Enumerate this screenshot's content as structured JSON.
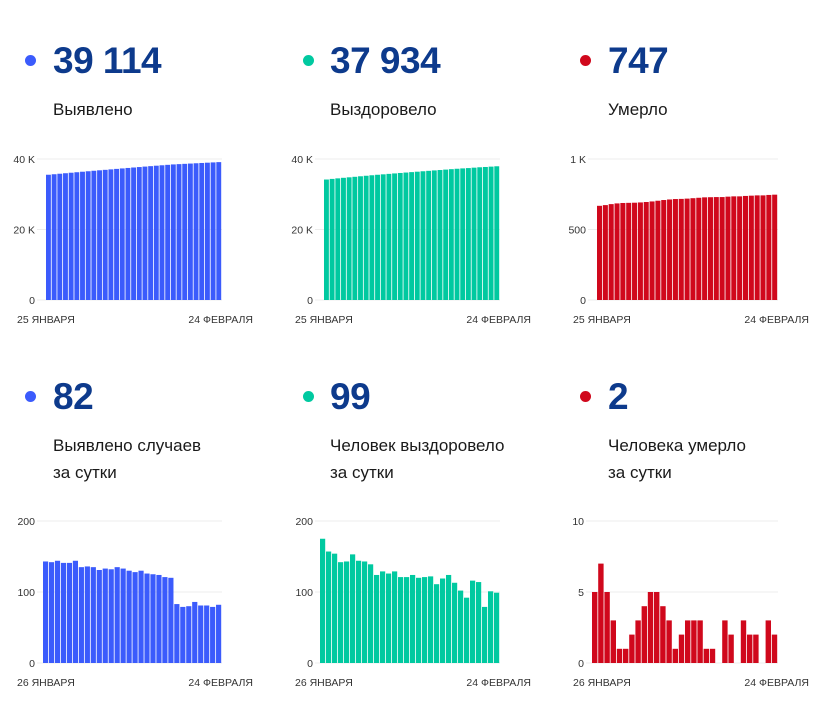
{
  "panels": [
    {
      "id": "detected-total",
      "value": "39 114",
      "label_lines": [
        "Выявлено"
      ],
      "color": "#3b5bfc",
      "chart_data": {
        "type": "bar",
        "title": "Выявлено",
        "x_start_label": "25 ЯНВАРЯ",
        "x_end_label": "24 ФЕВРАЛЯ",
        "x": [
          "25.01",
          "26.01",
          "27.01",
          "28.01",
          "29.01",
          "30.01",
          "31.01",
          "01.02",
          "02.02",
          "03.02",
          "04.02",
          "05.02",
          "06.02",
          "07.02",
          "08.02",
          "09.02",
          "10.02",
          "11.02",
          "12.02",
          "13.02",
          "14.02",
          "15.02",
          "16.02",
          "17.02",
          "18.02",
          "19.02",
          "20.02",
          "21.02",
          "22.02",
          "23.02",
          "24.02"
        ],
        "values": [
          35534,
          35677,
          35819,
          35963,
          36104,
          36245,
          36389,
          36524,
          36660,
          36795,
          36926,
          37059,
          37191,
          37326,
          37459,
          37589,
          37717,
          37847,
          37973,
          38098,
          38222,
          38343,
          38463,
          38546,
          38625,
          38705,
          38791,
          38872,
          38953,
          39032,
          39114
        ],
        "yticks": [
          "0",
          "20 K",
          "40 K"
        ],
        "ytick_values": [
          0,
          20000,
          40000
        ],
        "ylim": [
          0,
          40000
        ],
        "grid": true
      }
    },
    {
      "id": "recovered-total",
      "value": "37 934",
      "label_lines": [
        "Выздоровело"
      ],
      "color": "#00c9a0",
      "chart_data": {
        "type": "bar",
        "title": "Выздоровело",
        "x_start_label": "25 ЯНВАРЯ",
        "x_end_label": "24 ФЕВРАЛЯ",
        "x": [
          "25.01",
          "26.01",
          "27.01",
          "28.01",
          "29.01",
          "30.01",
          "31.01",
          "01.02",
          "02.02",
          "03.02",
          "04.02",
          "05.02",
          "06.02",
          "07.02",
          "08.02",
          "09.02",
          "10.02",
          "11.02",
          "12.02",
          "13.02",
          "14.02",
          "15.02",
          "16.02",
          "17.02",
          "18.02",
          "19.02",
          "20.02",
          "21.02",
          "22.02",
          "23.02",
          "24.02"
        ],
        "values": [
          34177,
          34352,
          34509,
          34663,
          34805,
          34948,
          35101,
          35245,
          35388,
          35527,
          35651,
          35780,
          35906,
          36035,
          36156,
          36277,
          36401,
          36521,
          36642,
          36764,
          36875,
          36994,
          37118,
          37231,
          37333,
          37425,
          37541,
          37655,
          37734,
          37835,
          37934
        ],
        "yticks": [
          "0",
          "20 K",
          "40 K"
        ],
        "ytick_values": [
          0,
          20000,
          40000
        ],
        "ylim": [
          0,
          40000
        ],
        "grid": true
      }
    },
    {
      "id": "deaths-total",
      "value": "747",
      "label_lines": [
        "Умерло"
      ],
      "color": "#d0081c",
      "chart_data": {
        "type": "bar",
        "title": "Умерло",
        "x_start_label": "25 ЯНВАРЯ",
        "x_end_label": "24 ФЕВРАЛЯ",
        "x": [
          "25.01",
          "26.01",
          "27.01",
          "28.01",
          "29.01",
          "30.01",
          "31.01",
          "01.02",
          "02.02",
          "03.02",
          "04.02",
          "05.02",
          "06.02",
          "07.02",
          "08.02",
          "09.02",
          "10.02",
          "11.02",
          "12.02",
          "13.02",
          "14.02",
          "15.02",
          "16.02",
          "17.02",
          "18.02",
          "19.02",
          "20.02",
          "21.02",
          "22.02",
          "23.02",
          "24.02"
        ],
        "values": [
          668,
          673,
          680,
          685,
          688,
          689,
          690,
          692,
          695,
          699,
          704,
          709,
          713,
          716,
          717,
          719,
          722,
          725,
          728,
          729,
          730,
          730,
          733,
          735,
          735,
          738,
          740,
          742,
          742,
          745,
          747
        ],
        "yticks": [
          "0",
          "500",
          "1 K"
        ],
        "ytick_values": [
          0,
          500,
          1000
        ],
        "ylim": [
          0,
          1000
        ],
        "grid": true
      }
    },
    {
      "id": "detected-daily",
      "value": "82",
      "label_lines": [
        "Выявлено случаев",
        "за сутки"
      ],
      "color": "#3b5bfc",
      "chart_data": {
        "type": "bar",
        "title": "Выявлено случаев за сутки",
        "x_start_label": "26 ЯНВАРЯ",
        "x_end_label": "24 ФЕВРАЛЯ",
        "x": [
          "26.01",
          "27.01",
          "28.01",
          "29.01",
          "30.01",
          "31.01",
          "01.02",
          "02.02",
          "03.02",
          "04.02",
          "05.02",
          "06.02",
          "07.02",
          "08.02",
          "09.02",
          "10.02",
          "11.02",
          "12.02",
          "13.02",
          "14.02",
          "15.02",
          "16.02",
          "17.02",
          "18.02",
          "19.02",
          "20.02",
          "21.02",
          "22.02",
          "23.02",
          "24.02"
        ],
        "values": [
          143,
          142,
          144,
          141,
          141,
          144,
          135,
          136,
          135,
          131,
          133,
          132,
          135,
          133,
          130,
          128,
          130,
          126,
          125,
          124,
          121,
          120,
          83,
          79,
          80,
          86,
          81,
          81,
          79,
          82
        ],
        "yticks": [
          "0",
          "100",
          "200"
        ],
        "ytick_values": [
          0,
          100,
          200
        ],
        "ylim": [
          0,
          200
        ],
        "grid": true
      }
    },
    {
      "id": "recovered-daily",
      "value": "99",
      "label_lines": [
        "Человек выздоровело",
        "за сутки"
      ],
      "color": "#00c9a0",
      "chart_data": {
        "type": "bar",
        "title": "Человек выздоровело за сутки",
        "x_start_label": "26 ЯНВАРЯ",
        "x_end_label": "24 ФЕВРАЛЯ",
        "x": [
          "26.01",
          "27.01",
          "28.01",
          "29.01",
          "30.01",
          "31.01",
          "01.02",
          "02.02",
          "03.02",
          "04.02",
          "05.02",
          "06.02",
          "07.02",
          "08.02",
          "09.02",
          "10.02",
          "11.02",
          "12.02",
          "13.02",
          "14.02",
          "15.02",
          "16.02",
          "17.02",
          "18.02",
          "19.02",
          "20.02",
          "21.02",
          "22.02",
          "23.02",
          "24.02"
        ],
        "values": [
          175,
          157,
          154,
          142,
          143,
          153,
          144,
          143,
          139,
          124,
          129,
          126,
          129,
          121,
          121,
          124,
          120,
          121,
          122,
          111,
          119,
          124,
          113,
          102,
          92,
          116,
          114,
          79,
          101,
          99
        ],
        "yticks": [
          "0",
          "100",
          "200"
        ],
        "ytick_values": [
          0,
          100,
          200
        ],
        "ylim": [
          0,
          200
        ],
        "grid": true
      }
    },
    {
      "id": "deaths-daily",
      "value": "2",
      "label_lines": [
        "Человека умерло",
        "за сутки"
      ],
      "color": "#d0081c",
      "chart_data": {
        "type": "bar",
        "title": "Человека умерло за сутки",
        "x_start_label": "26 ЯНВАРЯ",
        "x_end_label": "24 ФЕВРАЛЯ",
        "x": [
          "26.01",
          "27.01",
          "28.01",
          "29.01",
          "30.01",
          "31.01",
          "01.02",
          "02.02",
          "03.02",
          "04.02",
          "05.02",
          "06.02",
          "07.02",
          "08.02",
          "09.02",
          "10.02",
          "11.02",
          "12.02",
          "13.02",
          "14.02",
          "15.02",
          "16.02",
          "17.02",
          "18.02",
          "19.02",
          "20.02",
          "21.02",
          "22.02",
          "23.02",
          "24.02"
        ],
        "values": [
          5,
          7,
          5,
          3,
          1,
          1,
          2,
          3,
          4,
          5,
          5,
          4,
          3,
          1,
          2,
          3,
          3,
          3,
          1,
          1,
          0,
          3,
          2,
          0,
          3,
          2,
          2,
          0,
          3,
          2
        ],
        "yticks": [
          "0",
          "5",
          "10"
        ],
        "ytick_values": [
          0,
          5,
          10
        ],
        "ylim": [
          0,
          10
        ],
        "grid": true
      }
    }
  ],
  "chart_data": [
    {
      "type": "bar",
      "title": "Выявлено",
      "ref": "panels.0.chart_data"
    },
    {
      "type": "bar",
      "title": "Выздоровело",
      "ref": "panels.1.chart_data"
    },
    {
      "type": "bar",
      "title": "Умерло",
      "ref": "panels.2.chart_data"
    },
    {
      "type": "bar",
      "title": "Выявлено случаев за сутки",
      "ref": "panels.3.chart_data"
    },
    {
      "type": "bar",
      "title": "Человек выздоровело за сутки",
      "ref": "panels.4.chart_data"
    },
    {
      "type": "bar",
      "title": "Человека умерло за сутки",
      "ref": "panels.5.chart_data"
    }
  ]
}
